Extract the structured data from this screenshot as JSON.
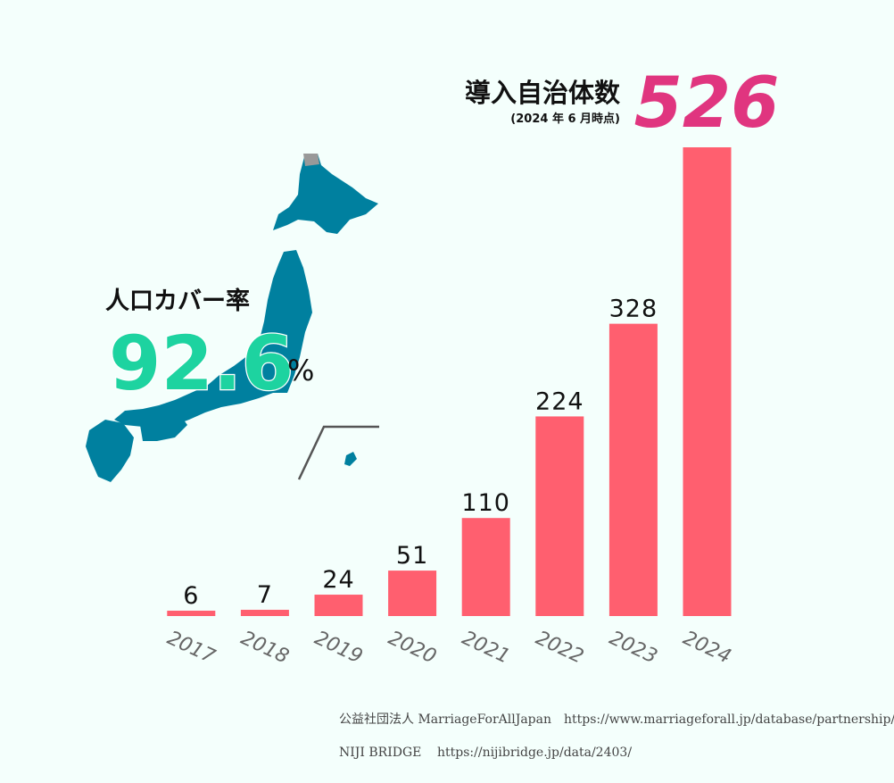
{
  "chart_data": {
    "type": "bar",
    "title": "導入自治体数",
    "subtitle": "(2024 年 6 月時点)",
    "headline": "526",
    "coverage_label": "人口カバー率",
    "coverage_value": "92.6",
    "coverage_unit": "%",
    "categories": [
      "2017",
      "2018",
      "2019",
      "2020",
      "2021",
      "2022",
      "2023",
      "2024"
    ],
    "values": [
      6,
      7,
      24,
      51,
      110,
      224,
      328,
      526
    ],
    "color": "#ff5f6f",
    "sources": [
      {
        "name": "公益社団法人 MarriageForAllJapan",
        "url": "https://www.marriageforall.jp/database/partnership/"
      },
      {
        "name": "NIJI BRIDGE",
        "url": "https://nijibridge.jp/data/2403/"
      }
    ]
  }
}
